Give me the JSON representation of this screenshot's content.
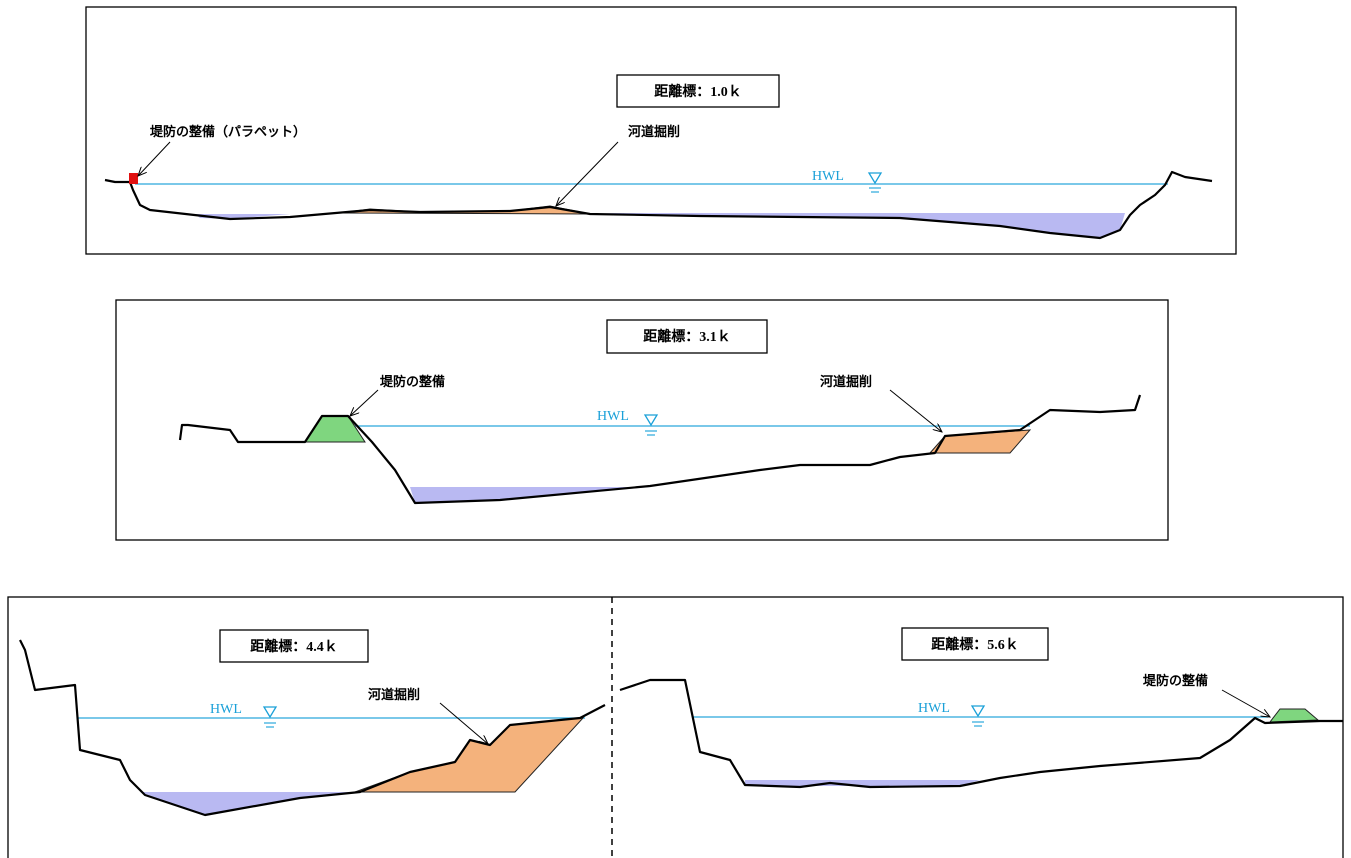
{
  "sections": [
    {
      "label": "距離標：1.0ｋ",
      "hwl": "HWL",
      "annotations": [
        "堤防の整備（パラペット）",
        "河道掘削"
      ]
    },
    {
      "label": "距離標：3.1ｋ",
      "hwl": "HWL",
      "annotations": [
        "堤防の整備",
        "河道掘削"
      ]
    },
    {
      "label": "距離標：4.4ｋ",
      "hwl": "HWL",
      "annotations": [
        "河道掘削"
      ]
    },
    {
      "label": "距離標：5.6ｋ",
      "hwl": "HWL",
      "annotations": [
        "堤防の整備"
      ]
    }
  ]
}
